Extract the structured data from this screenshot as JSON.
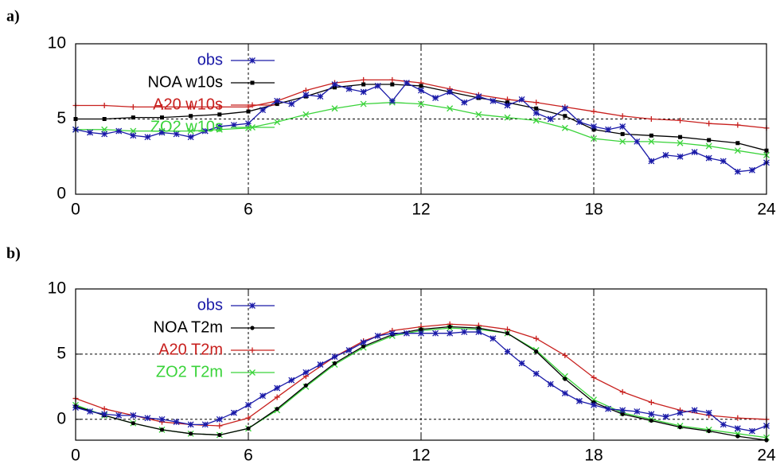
{
  "chart_data": [
    {
      "type": "line",
      "label": "a)",
      "xlim": [
        0,
        24
      ],
      "xticks": [
        0,
        6,
        12,
        18,
        24
      ],
      "ylim": [
        0,
        10
      ],
      "yticks": [
        0,
        5,
        10
      ],
      "grid": true,
      "legend": "upper left",
      "series": [
        {
          "name": "obs",
          "color": "#1a1aa8",
          "marker": "star",
          "x": [
            0,
            0.5,
            1,
            1.5,
            2,
            2.5,
            3,
            3.5,
            4,
            4.5,
            5,
            5.5,
            6,
            6.5,
            7,
            7.5,
            8,
            8.5,
            9,
            9.5,
            10,
            10.5,
            11,
            11.5,
            12,
            12.5,
            13,
            13.5,
            14,
            14.5,
            15,
            15.5,
            16,
            16.5,
            17,
            17.5,
            18,
            18.5,
            19,
            19.5,
            20,
            20.5,
            21,
            21.5,
            22,
            22.5,
            23,
            23.5,
            24
          ],
          "values": [
            4.3,
            4.1,
            4.0,
            4.2,
            3.9,
            3.8,
            4.1,
            4.0,
            3.8,
            4.2,
            4.5,
            4.6,
            4.7,
            5.6,
            6.2,
            6.0,
            6.6,
            6.5,
            7.3,
            7.0,
            6.8,
            7.2,
            6.2,
            7.4,
            6.9,
            6.4,
            6.8,
            6.1,
            6.5,
            6.2,
            5.9,
            6.3,
            5.4,
            5.0,
            5.7,
            4.8,
            4.5,
            4.3,
            4.5,
            3.5,
            2.2,
            2.6,
            2.5,
            2.8,
            2.4,
            2.2,
            1.5,
            1.6,
            2.1
          ]
        },
        {
          "name": "NOA w10s",
          "color": "#000000",
          "marker": "square",
          "x": [
            0,
            1,
            2,
            3,
            4,
            5,
            6,
            7,
            8,
            9,
            10,
            11,
            12,
            13,
            14,
            15,
            16,
            17,
            18,
            19,
            20,
            21,
            22,
            23,
            24
          ],
          "values": [
            5.0,
            5.0,
            5.1,
            5.1,
            5.2,
            5.3,
            5.5,
            6.0,
            6.5,
            7.1,
            7.3,
            7.3,
            7.2,
            6.8,
            6.4,
            6.1,
            5.7,
            5.2,
            4.3,
            4.0,
            3.9,
            3.8,
            3.6,
            3.4,
            2.9
          ]
        },
        {
          "name": "A20 w10s",
          "color": "#c8201e",
          "marker": "plus",
          "x": [
            0,
            1,
            2,
            3,
            4,
            5,
            6,
            7,
            8,
            9,
            10,
            11,
            12,
            13,
            14,
            15,
            16,
            17,
            18,
            19,
            20,
            21,
            22,
            23,
            24
          ],
          "values": [
            5.9,
            5.9,
            5.8,
            5.8,
            5.8,
            5.8,
            5.8,
            6.2,
            6.9,
            7.4,
            7.6,
            7.6,
            7.4,
            7.0,
            6.6,
            6.3,
            6.1,
            5.8,
            5.5,
            5.2,
            5.0,
            4.9,
            4.7,
            4.6,
            4.4
          ]
        },
        {
          "name": "ZO2 w10s",
          "color": "#3ad33a",
          "marker": "cross",
          "x": [
            0,
            1,
            2,
            3,
            4,
            5,
            6,
            7,
            8,
            9,
            10,
            11,
            12,
            13,
            14,
            15,
            16,
            17,
            18,
            19,
            20,
            21,
            22,
            23,
            24
          ],
          "values": [
            4.3,
            4.3,
            4.2,
            4.2,
            4.2,
            4.3,
            4.4,
            4.8,
            5.3,
            5.7,
            6.0,
            6.1,
            6.0,
            5.7,
            5.3,
            5.1,
            4.9,
            4.4,
            3.7,
            3.5,
            3.5,
            3.4,
            3.2,
            2.9,
            2.6
          ]
        }
      ]
    },
    {
      "type": "line",
      "label": "b)",
      "xlim": [
        0,
        24
      ],
      "xticks": [
        0,
        6,
        12,
        18,
        24
      ],
      "ylim": [
        -1.6,
        10
      ],
      "yticks": [
        0,
        5,
        10
      ],
      "grid": true,
      "legend": "upper left",
      "series": [
        {
          "name": "obs",
          "color": "#1a1aa8",
          "marker": "star",
          "x": [
            0,
            0.5,
            1,
            1.5,
            2,
            2.5,
            3,
            3.5,
            4,
            4.5,
            5,
            5.5,
            6,
            6.5,
            7,
            7.5,
            8,
            8.5,
            9,
            9.5,
            10,
            10.5,
            11,
            11.5,
            12,
            12.5,
            13,
            13.5,
            14,
            14.5,
            15,
            15.5,
            16,
            16.5,
            17,
            17.5,
            18,
            18.5,
            19,
            19.5,
            20,
            20.5,
            21,
            21.5,
            22,
            22.5,
            23,
            23.5,
            24
          ],
          "values": [
            0.9,
            0.6,
            0.4,
            0.3,
            0.3,
            0.1,
            0.0,
            -0.2,
            -0.4,
            -0.4,
            0.0,
            0.5,
            1.1,
            1.8,
            2.4,
            3.0,
            3.6,
            4.2,
            4.8,
            5.3,
            5.9,
            6.4,
            6.6,
            6.6,
            6.6,
            6.6,
            6.6,
            6.7,
            6.7,
            6.2,
            5.2,
            4.3,
            3.5,
            2.7,
            2.0,
            1.4,
            1.1,
            0.8,
            0.7,
            0.6,
            0.4,
            0.2,
            0.5,
            0.7,
            0.5,
            -0.4,
            -0.7,
            -0.9,
            -0.5
          ]
        },
        {
          "name": "NOA T2m",
          "color": "#000000",
          "marker": "circle",
          "x": [
            0,
            1,
            2,
            3,
            4,
            5,
            6,
            7,
            8,
            9,
            10,
            11,
            12,
            13,
            14,
            15,
            16,
            17,
            18,
            19,
            20,
            21,
            22,
            23,
            24
          ],
          "values": [
            1.0,
            0.3,
            -0.3,
            -0.8,
            -1.1,
            -1.2,
            -0.7,
            0.8,
            2.6,
            4.3,
            5.6,
            6.5,
            6.9,
            7.1,
            7.0,
            6.6,
            5.2,
            3.1,
            1.3,
            0.4,
            -0.1,
            -0.6,
            -0.9,
            -1.3,
            -1.6
          ]
        },
        {
          "name": "A20 T2m",
          "color": "#c8201e",
          "marker": "plus",
          "x": [
            0,
            1,
            2,
            3,
            4,
            5,
            6,
            7,
            8,
            9,
            10,
            11,
            12,
            13,
            14,
            15,
            16,
            17,
            18,
            19,
            20,
            21,
            22,
            23,
            24
          ],
          "values": [
            1.6,
            0.8,
            0.3,
            -0.2,
            -0.4,
            -0.5,
            0.1,
            1.7,
            3.3,
            4.8,
            6.0,
            6.8,
            7.1,
            7.3,
            7.2,
            6.9,
            6.2,
            4.9,
            3.2,
            2.1,
            1.3,
            0.7,
            0.3,
            0.1,
            0.0
          ]
        },
        {
          "name": "ZO2 T2m",
          "color": "#3ad33a",
          "marker": "cross",
          "x": [
            0,
            1,
            2,
            3,
            4,
            5,
            6,
            7,
            8,
            9,
            10,
            11,
            12,
            13,
            14,
            15,
            16,
            17,
            18,
            19,
            20,
            21,
            22,
            23,
            24
          ],
          "values": [
            1.1,
            0.3,
            -0.3,
            -0.8,
            -1.1,
            -1.2,
            -0.7,
            0.7,
            2.5,
            4.2,
            5.5,
            6.4,
            6.8,
            7.0,
            6.9,
            6.6,
            5.3,
            3.3,
            1.5,
            0.5,
            0.0,
            -0.5,
            -0.8,
            -1.1,
            -1.4
          ]
        }
      ]
    }
  ]
}
